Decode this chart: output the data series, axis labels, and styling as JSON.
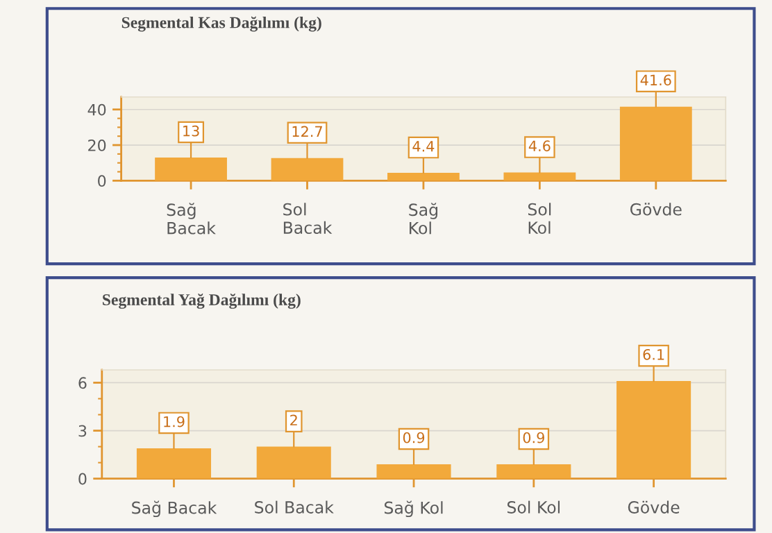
{
  "chart_data": [
    {
      "type": "bar",
      "title": "Segmental Kas Dağılımı (kg)",
      "categories": [
        "Sağ\nBacak",
        "Sol\nBacak",
        "Sağ\nKol",
        "Sol\nKol",
        "Gövde"
      ],
      "values": [
        13,
        12.7,
        4.4,
        4.6,
        41.6
      ],
      "color": "#f2a93b",
      "ylim": [
        0,
        47
      ],
      "yticks": [
        0,
        {
          "value": 5,
          "label": null
        },
        {
          "value": 10,
          "label": null
        },
        {
          "value": 15,
          "label": null
        },
        20,
        {
          "value": 25,
          "label": null
        },
        {
          "value": 30,
          "label": null
        },
        {
          "value": 35,
          "label": null
        },
        40
      ],
      "grid": "y",
      "data_labels": true
    },
    {
      "type": "bar",
      "title": "Segmental Yağ Dağılımı (kg)",
      "categories": [
        "Sağ Bacak",
        "Sol Bacak",
        "Sağ Kol",
        "Sol Kol",
        "Gövde"
      ],
      "values": [
        1.9,
        2,
        0.9,
        0.9,
        6.1
      ],
      "color": "#f2a93b",
      "ylim": [
        0,
        6.8
      ],
      "yticks": [
        0,
        {
          "value": 1,
          "label": null
        },
        {
          "value": 2,
          "label": null
        },
        3,
        {
          "value": 4,
          "label": null
        },
        {
          "value": 5,
          "label": null
        },
        6
      ],
      "grid": "y",
      "data_labels": true
    }
  ]
}
